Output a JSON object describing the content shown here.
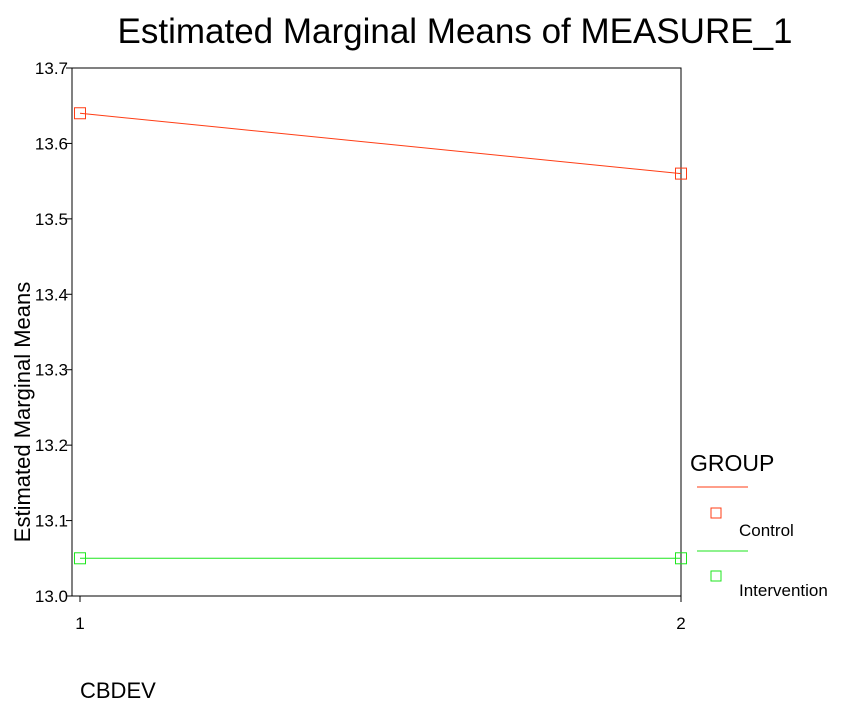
{
  "chart_data": {
    "type": "line",
    "title": "Estimated Marginal Means of MEASURE_1",
    "xlabel": "CBDEV",
    "ylabel": "Estimated Marginal Means",
    "categories": [
      "1",
      "2"
    ],
    "ylim": [
      13.0,
      13.7
    ],
    "yticks": [
      "13.0",
      "13.1",
      "13.2",
      "13.3",
      "13.4",
      "13.5",
      "13.6",
      "13.7"
    ],
    "grid": false,
    "legend": {
      "title": "GROUP",
      "position": "right"
    },
    "series": [
      {
        "name": "Control",
        "values": [
          13.64,
          13.56
        ],
        "color": "#ff3c14",
        "marker": "square-open"
      },
      {
        "name": "Intervention",
        "values": [
          13.05,
          13.05
        ],
        "color": "#1ee61e",
        "marker": "square-open"
      }
    ]
  }
}
